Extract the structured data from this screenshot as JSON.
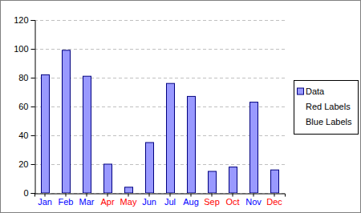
{
  "chart_data": {
    "type": "bar",
    "categories": [
      "Jan",
      "Feb",
      "Mar",
      "Apr",
      "May",
      "Jun",
      "Jul",
      "Aug",
      "Sep",
      "Oct",
      "Nov",
      "Dec"
    ],
    "series": [
      {
        "name": "Data",
        "color": "#9999ff",
        "values": [
          82,
          99,
          81,
          20,
          4,
          35,
          76,
          67,
          15,
          18,
          63,
          16
        ]
      },
      {
        "name": "Red Labels",
        "type": "scatter",
        "marker": "none",
        "color": "#ff0000",
        "values": [
          null,
          null,
          null,
          0,
          0,
          null,
          null,
          null,
          0,
          0,
          null,
          0
        ]
      },
      {
        "name": "Blue Labels",
        "type": "scatter",
        "marker": "none",
        "color": "#0000ff",
        "values": [
          0,
          0,
          0,
          null,
          null,
          0,
          0,
          0,
          null,
          null,
          0,
          null
        ]
      }
    ],
    "ylim": [
      0,
      120
    ],
    "yticks": [
      0,
      20,
      40,
      60,
      80,
      100,
      120
    ],
    "grid": true,
    "legend": "right"
  }
}
